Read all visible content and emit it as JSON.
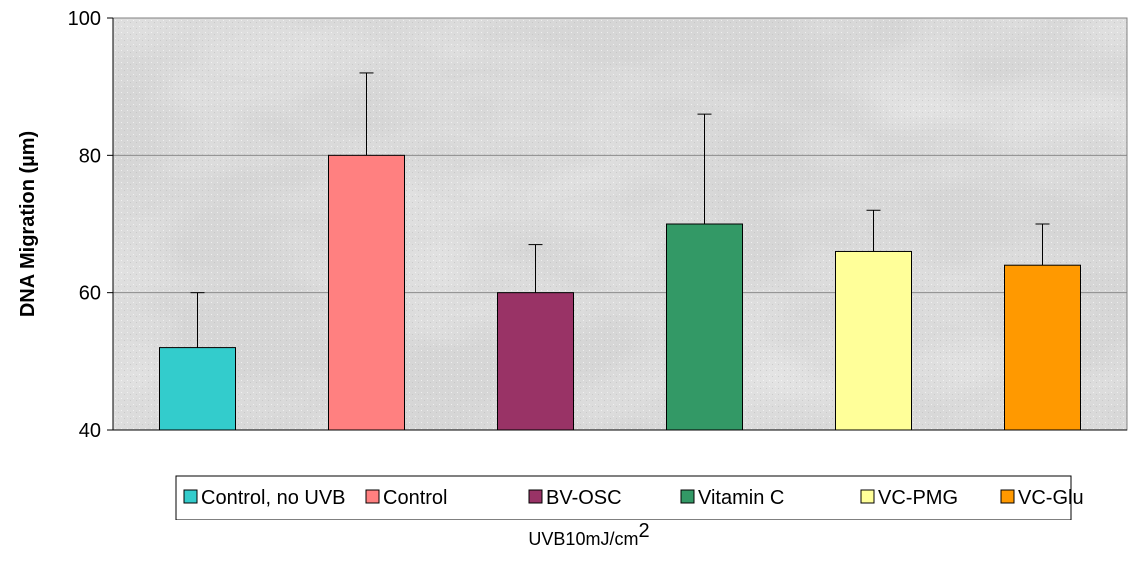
{
  "chart_data": {
    "type": "bar",
    "categories": [
      "Control, no UVB",
      "Control",
      "BV-OSC",
      "Vitamin C",
      "VC-PMG",
      "VC-Glu"
    ],
    "values": [
      52,
      80,
      60,
      70,
      66,
      64
    ],
    "error": [
      8,
      12,
      7,
      16,
      6,
      6
    ],
    "colors": [
      "#33CCCC",
      "#FF8080",
      "#993366",
      "#339966",
      "#FFFF99",
      "#FF9900"
    ],
    "ylabel": "DNA Migration (µm)",
    "ylim": [
      40,
      100
    ],
    "yticks": [
      40,
      60,
      80,
      100
    ],
    "grid": true,
    "legend_position": "bottom",
    "background": "textured gray"
  },
  "footnote": {
    "text": "UVB10mJ/cm",
    "superscript": "2"
  }
}
